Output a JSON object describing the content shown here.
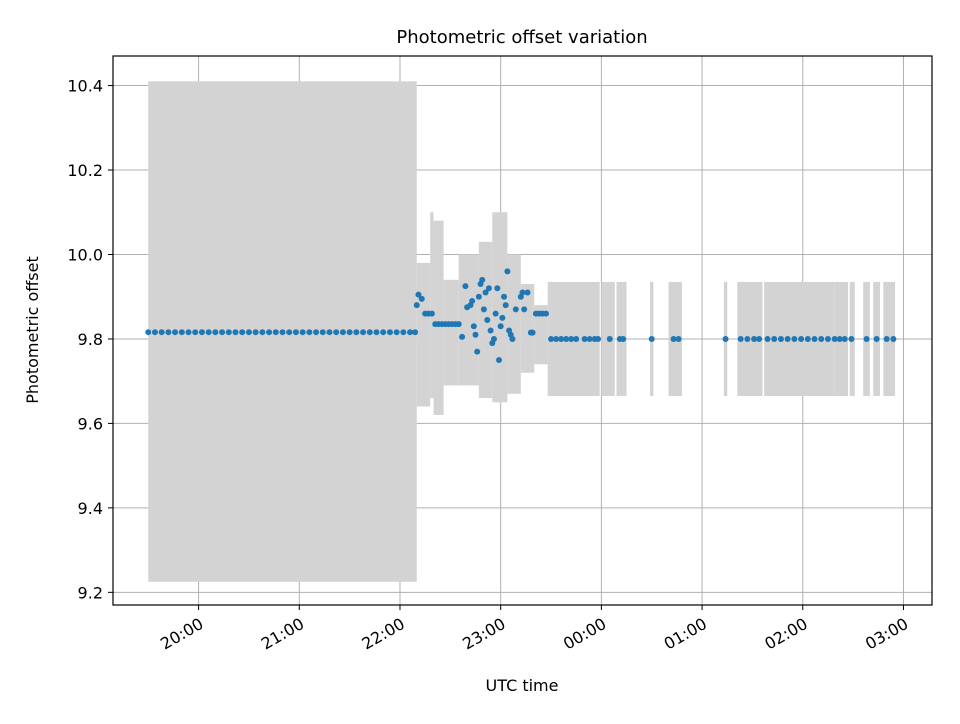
{
  "chart_data": {
    "type": "scatter",
    "title": "Photometric offset variation",
    "xlabel": "UTC time",
    "ylabel": "Photometric offset",
    "xlim": [
      "19:09",
      "03:17"
    ],
    "ylim": [
      9.17,
      10.47
    ],
    "yticks": [
      "9.2",
      "9.4",
      "9.6",
      "9.8",
      "10.0",
      "10.2",
      "10.4"
    ],
    "xticks": [
      "20:00",
      "21:00",
      "22:00",
      "23:00",
      "00:00",
      "01:00",
      "02:00",
      "03:00"
    ],
    "grid": true,
    "colors": {
      "points": "#1f77b4",
      "errorbars": "#d3d3d3",
      "grid": "#b0b0b0"
    },
    "error_bands": [
      {
        "x_start": "19:30",
        "x_end": "22:10",
        "lower": 9.225,
        "upper": 10.41
      },
      {
        "x_start": "22:10",
        "x_end": "22:18",
        "lower": 9.64,
        "upper": 9.98
      },
      {
        "x_start": "22:18",
        "x_end": "22:20",
        "lower": 9.66,
        "upper": 10.1
      },
      {
        "x_start": "22:20",
        "x_end": "22:26",
        "lower": 9.62,
        "upper": 10.08
      },
      {
        "x_start": "22:26",
        "x_end": "22:35",
        "lower": 9.69,
        "upper": 9.94
      },
      {
        "x_start": "22:35",
        "x_end": "22:47",
        "lower": 9.69,
        "upper": 10.0
      },
      {
        "x_start": "22:47",
        "x_end": "22:55",
        "lower": 9.66,
        "upper": 10.03
      },
      {
        "x_start": "22:55",
        "x_end": "23:04",
        "lower": 9.65,
        "upper": 10.1
      },
      {
        "x_start": "23:04",
        "x_end": "23:12",
        "lower": 9.67,
        "upper": 10.0
      },
      {
        "x_start": "23:12",
        "x_end": "23:20",
        "lower": 9.72,
        "upper": 9.93
      },
      {
        "x_start": "23:20",
        "x_end": "23:28",
        "lower": 9.74,
        "upper": 9.88
      },
      {
        "x_start": "23:28",
        "x_end": "23:59",
        "lower": 9.665,
        "upper": 9.935
      },
      {
        "x_start": "00:00",
        "x_end": "00:08",
        "lower": 9.665,
        "upper": 9.935
      },
      {
        "x_start": "00:09",
        "x_end": "00:15",
        "lower": 9.665,
        "upper": 9.935
      },
      {
        "x_start": "00:29",
        "x_end": "00:31",
        "lower": 9.665,
        "upper": 9.935
      },
      {
        "x_start": "00:40",
        "x_end": "00:48",
        "lower": 9.665,
        "upper": 9.935
      },
      {
        "x_start": "01:13",
        "x_end": "01:15",
        "lower": 9.665,
        "upper": 9.935
      },
      {
        "x_start": "01:21",
        "x_end": "01:36",
        "lower": 9.665,
        "upper": 9.935
      },
      {
        "x_start": "01:37",
        "x_end": "02:19",
        "lower": 9.665,
        "upper": 9.935
      },
      {
        "x_start": "02:19",
        "x_end": "02:27",
        "lower": 9.665,
        "upper": 9.935
      },
      {
        "x_start": "02:28",
        "x_end": "02:31",
        "lower": 9.665,
        "upper": 9.935
      },
      {
        "x_start": "02:36",
        "x_end": "02:40",
        "lower": 9.665,
        "upper": 9.935
      },
      {
        "x_start": "02:42",
        "x_end": "02:46",
        "lower": 9.665,
        "upper": 9.935
      },
      {
        "x_start": "02:48",
        "x_end": "02:55",
        "lower": 9.665,
        "upper": 9.935
      }
    ],
    "series": [
      {
        "points": [
          [
            "19:30",
            9.816
          ],
          [
            "19:34",
            9.816
          ],
          [
            "19:38",
            9.816
          ],
          [
            "19:42",
            9.816
          ],
          [
            "19:46",
            9.816
          ],
          [
            "19:50",
            9.816
          ],
          [
            "19:54",
            9.816
          ],
          [
            "19:58",
            9.816
          ],
          [
            "20:02",
            9.816
          ],
          [
            "20:06",
            9.816
          ],
          [
            "20:10",
            9.816
          ],
          [
            "20:14",
            9.816
          ],
          [
            "20:18",
            9.816
          ],
          [
            "20:22",
            9.816
          ],
          [
            "20:26",
            9.816
          ],
          [
            "20:30",
            9.816
          ],
          [
            "20:34",
            9.816
          ],
          [
            "20:38",
            9.816
          ],
          [
            "20:42",
            9.816
          ],
          [
            "20:46",
            9.816
          ],
          [
            "20:50",
            9.816
          ],
          [
            "20:54",
            9.816
          ],
          [
            "20:58",
            9.816
          ],
          [
            "21:02",
            9.816
          ],
          [
            "21:06",
            9.816
          ],
          [
            "21:10",
            9.816
          ],
          [
            "21:14",
            9.816
          ],
          [
            "21:18",
            9.816
          ],
          [
            "21:22",
            9.816
          ],
          [
            "21:26",
            9.816
          ],
          [
            "21:30",
            9.816
          ],
          [
            "21:34",
            9.816
          ],
          [
            "21:38",
            9.816
          ],
          [
            "21:42",
            9.816
          ],
          [
            "21:46",
            9.816
          ],
          [
            "21:50",
            9.816
          ],
          [
            "21:54",
            9.816
          ],
          [
            "21:58",
            9.816
          ],
          [
            "22:02",
            9.816
          ],
          [
            "22:06",
            9.816
          ],
          [
            "22:09",
            9.816
          ],
          [
            "22:10",
            9.88
          ],
          [
            "22:11",
            9.905
          ],
          [
            "22:13",
            9.895
          ],
          [
            "22:15",
            9.86
          ],
          [
            "22:17",
            9.86
          ],
          [
            "22:19",
            9.86
          ],
          [
            "22:21",
            9.835
          ],
          [
            "22:23",
            9.835
          ],
          [
            "22:25",
            9.835
          ],
          [
            "22:27",
            9.835
          ],
          [
            "22:29",
            9.835
          ],
          [
            "22:31",
            9.835
          ],
          [
            "22:33",
            9.835
          ],
          [
            "22:35",
            9.835
          ],
          [
            "22:37",
            9.805
          ],
          [
            "22:39",
            9.925
          ],
          [
            "22:40",
            9.875
          ],
          [
            "22:42",
            9.88
          ],
          [
            "22:43",
            9.89
          ],
          [
            "22:44",
            9.83
          ],
          [
            "22:45",
            9.81
          ],
          [
            "22:46",
            9.77
          ],
          [
            "22:47",
            9.9
          ],
          [
            "22:48",
            9.93
          ],
          [
            "22:49",
            9.94
          ],
          [
            "22:50",
            9.87
          ],
          [
            "22:51",
            9.91
          ],
          [
            "22:52",
            9.845
          ],
          [
            "22:53",
            9.92
          ],
          [
            "22:54",
            9.82
          ],
          [
            "22:55",
            9.79
          ],
          [
            "22:56",
            9.8
          ],
          [
            "22:57",
            9.86
          ],
          [
            "22:58",
            9.92
          ],
          [
            "22:59",
            9.75
          ],
          [
            "23:00",
            9.83
          ],
          [
            "23:01",
            9.85
          ],
          [
            "23:02",
            9.9
          ],
          [
            "23:03",
            9.88
          ],
          [
            "23:04",
            9.96
          ],
          [
            "23:05",
            9.82
          ],
          [
            "23:06",
            9.81
          ],
          [
            "23:07",
            9.8
          ],
          [
            "23:09",
            9.87
          ],
          [
            "23:12",
            9.9
          ],
          [
            "23:13",
            9.91
          ],
          [
            "23:14",
            9.87
          ],
          [
            "23:16",
            9.91
          ],
          [
            "23:18",
            9.815
          ],
          [
            "23:19",
            9.815
          ],
          [
            "23:21",
            9.86
          ],
          [
            "23:23",
            9.86
          ],
          [
            "23:25",
            9.86
          ],
          [
            "23:27",
            9.86
          ],
          [
            "23:30",
            9.8
          ],
          [
            "23:33",
            9.8
          ],
          [
            "23:36",
            9.8
          ],
          [
            "23:39",
            9.8
          ],
          [
            "23:42",
            9.8
          ],
          [
            "23:45",
            9.8
          ],
          [
            "23:50",
            9.8
          ],
          [
            "23:53",
            9.8
          ],
          [
            "23:56",
            9.8
          ],
          [
            "23:58",
            9.8
          ],
          [
            "00:05",
            9.8
          ],
          [
            "00:11",
            9.8
          ],
          [
            "00:13",
            9.8
          ],
          [
            "00:30",
            9.8
          ],
          [
            "00:43",
            9.8
          ],
          [
            "00:46",
            9.8
          ],
          [
            "01:14",
            9.8
          ],
          [
            "01:23",
            9.8
          ],
          [
            "01:27",
            9.8
          ],
          [
            "01:31",
            9.8
          ],
          [
            "01:34",
            9.8
          ],
          [
            "01:39",
            9.8
          ],
          [
            "01:43",
            9.8
          ],
          [
            "01:47",
            9.8
          ],
          [
            "01:51",
            9.8
          ],
          [
            "01:55",
            9.8
          ],
          [
            "01:59",
            9.8
          ],
          [
            "02:03",
            9.8
          ],
          [
            "02:07",
            9.8
          ],
          [
            "02:11",
            9.8
          ],
          [
            "02:15",
            9.8
          ],
          [
            "02:19",
            9.8
          ],
          [
            "02:22",
            9.8
          ],
          [
            "02:25",
            9.8
          ],
          [
            "02:29",
            9.8
          ],
          [
            "02:38",
            9.8
          ],
          [
            "02:44",
            9.8
          ],
          [
            "02:50",
            9.8
          ],
          [
            "02:54",
            9.8
          ]
        ]
      }
    ]
  }
}
